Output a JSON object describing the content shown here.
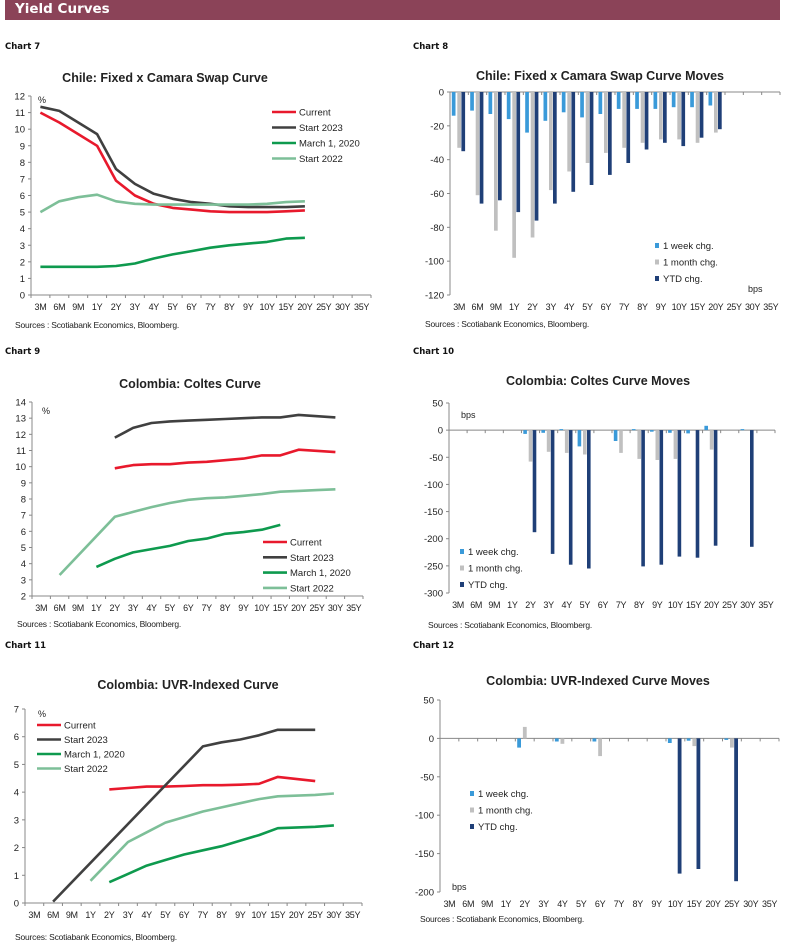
{
  "header": {
    "title": "Yield Curves",
    "color": "#8B4358"
  },
  "chart_labels": [
    "Chart 7",
    "Chart 8",
    "Chart 9",
    "Chart 10",
    "Chart 11",
    "Chart 12"
  ],
  "colors": {
    "Current": "#E8192C",
    "Start 2023": "#404040",
    "March 1, 2020": "#0E9A4E",
    "Start 2022": "#7DBF98",
    "1 week chg.": "#3A9AD9",
    "1 month chg.": "#C0C0C0",
    "YTD chg.": "#1F3F77"
  },
  "chart_data": [
    {
      "type": "line",
      "title": "Chile: Fixed x Camara Swap Curve",
      "ylabel": "%",
      "source": "Sources : Scotiabank Economics, Bloomberg.",
      "categories": [
        "3M",
        "6M",
        "9M",
        "1Y",
        "2Y",
        "3Y",
        "4Y",
        "5Y",
        "6Y",
        "7Y",
        "8Y",
        "9Y",
        "10Y",
        "15Y",
        "20Y",
        "25Y",
        "30Y",
        "35Y"
      ],
      "ylim": [
        0,
        12
      ],
      "yticks": [
        0,
        1,
        2,
        3,
        4,
        5,
        6,
        7,
        8,
        9,
        10,
        11,
        12
      ],
      "legend": "top-right",
      "series": [
        {
          "name": "Current",
          "values": [
            11.0,
            10.4,
            9.7,
            9.0,
            6.9,
            6.0,
            5.5,
            5.25,
            5.15,
            5.05,
            5.0,
            5.0,
            5.0,
            5.05,
            5.1,
            null,
            null,
            null
          ]
        },
        {
          "name": "Start 2023",
          "values": [
            11.35,
            11.1,
            10.4,
            9.7,
            7.6,
            6.7,
            6.1,
            5.8,
            5.6,
            5.5,
            5.35,
            5.3,
            5.3,
            5.3,
            5.35,
            null,
            null,
            null
          ]
        },
        {
          "name": "March 1, 2020",
          "values": [
            1.7,
            1.7,
            1.7,
            1.7,
            1.75,
            1.9,
            2.2,
            2.45,
            2.65,
            2.85,
            3.0,
            3.1,
            3.2,
            3.4,
            3.45,
            null,
            null,
            null
          ]
        },
        {
          "name": "Start 2022",
          "values": [
            5.0,
            5.65,
            5.9,
            6.05,
            5.65,
            5.5,
            5.45,
            5.45,
            5.45,
            5.45,
            5.45,
            5.45,
            5.5,
            5.6,
            5.65,
            null,
            null,
            null
          ]
        }
      ]
    },
    {
      "type": "bar",
      "title": "Chile: Fixed x Camara Swap Curve Moves",
      "ylabel": "bps",
      "source": "Sources : Scotiabank Economics, Bloomberg.",
      "categories": [
        "3M",
        "6M",
        "9M",
        "1Y",
        "2Y",
        "3Y",
        "4Y",
        "5Y",
        "6Y",
        "7Y",
        "8Y",
        "9Y",
        "10Y",
        "15Y",
        "20Y",
        "25Y",
        "30Y",
        "35Y"
      ],
      "ylim": [
        -120,
        0
      ],
      "yticks": [
        -120,
        -100,
        -80,
        -60,
        -40,
        -20,
        0
      ],
      "legend": "bottom-right",
      "series": [
        {
          "name": "1 week chg.",
          "values": [
            -14,
            -11,
            -13,
            -16,
            -24,
            -17,
            -12,
            -15,
            -13,
            -10,
            -10,
            -10,
            -9,
            -9,
            -8,
            null,
            null,
            null
          ]
        },
        {
          "name": "1 month chg.",
          "values": [
            -33,
            -61,
            -82,
            -98,
            -86,
            -58,
            -47,
            -42,
            -36,
            -33,
            -30,
            -28,
            -28,
            -30,
            -24,
            null,
            null,
            null
          ]
        },
        {
          "name": "YTD chg.",
          "values": [
            -35,
            -66,
            -64,
            -71,
            -76,
            -66,
            -59,
            -55,
            -49,
            -42,
            -34,
            -30,
            -32,
            -27,
            -22,
            null,
            null,
            null
          ]
        }
      ]
    },
    {
      "type": "line",
      "title": "Colombia: Coltes Curve",
      "ylabel": "%",
      "source": "Sources : Scotiabank Economics, Bloomberg.",
      "categories": [
        "3M",
        "6M",
        "9M",
        "1Y",
        "2Y",
        "3Y",
        "4Y",
        "5Y",
        "6Y",
        "7Y",
        "8Y",
        "9Y",
        "10Y",
        "15Y",
        "20Y",
        "25Y",
        "30Y",
        "35Y"
      ],
      "ylim": [
        2,
        14
      ],
      "yticks": [
        2,
        3,
        4,
        5,
        6,
        7,
        8,
        9,
        10,
        11,
        12,
        13,
        14
      ],
      "legend": "bottom-right",
      "series": [
        {
          "name": "Current",
          "values": [
            null,
            null,
            null,
            null,
            9.9,
            10.1,
            10.15,
            10.15,
            10.25,
            10.3,
            10.4,
            10.5,
            10.7,
            10.7,
            11.05,
            null,
            10.9,
            null
          ]
        },
        {
          "name": "Start 2023",
          "values": [
            null,
            null,
            null,
            null,
            11.8,
            12.4,
            12.7,
            12.8,
            12.85,
            12.9,
            12.95,
            13.0,
            13.05,
            13.05,
            13.2,
            null,
            13.05,
            null
          ]
        },
        {
          "name": "March 1, 2020",
          "values": [
            null,
            null,
            null,
            3.8,
            4.3,
            4.7,
            4.9,
            5.1,
            5.4,
            5.55,
            5.85,
            5.95,
            6.1,
            6.4,
            null,
            null,
            null,
            null
          ]
        },
        {
          "name": "Start 2022",
          "values": [
            null,
            3.3,
            null,
            null,
            6.9,
            7.2,
            7.5,
            7.75,
            7.95,
            8.05,
            8.1,
            8.2,
            8.3,
            8.45,
            8.5,
            8.55,
            8.6,
            null
          ]
        }
      ]
    },
    {
      "type": "bar",
      "title": "Colombia: Coltes Curve Moves",
      "ylabel": "bps",
      "source": "Sources : Scotiabank Economics, Bloomberg.",
      "categories": [
        "3M",
        "6M",
        "9M",
        "1Y",
        "2Y",
        "3Y",
        "4Y",
        "5Y",
        "6Y",
        "7Y",
        "8Y",
        "9Y",
        "10Y",
        "15Y",
        "20Y",
        "25Y",
        "30Y",
        "35Y"
      ],
      "ylim": [
        -300,
        50
      ],
      "yticks": [
        -300,
        -250,
        -200,
        -150,
        -100,
        -50,
        0,
        50
      ],
      "legend": "bottom-left",
      "series": [
        {
          "name": "1 week chg.",
          "values": [
            null,
            null,
            null,
            null,
            -7,
            -5,
            2,
            -30,
            null,
            -20,
            2,
            -3,
            -5,
            -6,
            8,
            null,
            2,
            null
          ]
        },
        {
          "name": "1 month chg.",
          "values": [
            null,
            null,
            null,
            null,
            -58,
            -40,
            -42,
            -45,
            null,
            -42,
            -53,
            -55,
            -53,
            null,
            -36,
            null,
            null,
            null
          ]
        },
        {
          "name": "YTD chg.",
          "values": [
            null,
            null,
            null,
            null,
            -188,
            -228,
            -248,
            -255,
            null,
            null,
            -251,
            -248,
            -233,
            -235,
            -213,
            null,
            -215,
            null
          ]
        }
      ]
    },
    {
      "type": "line",
      "title": "Colombia: UVR-Indexed Curve",
      "ylabel": "%",
      "source": "Sources: Scotiabank Economics, Bloomberg.",
      "categories": [
        "3M",
        "6M",
        "9M",
        "1Y",
        "2Y",
        "3Y",
        "4Y",
        "5Y",
        "6Y",
        "7Y",
        "8Y",
        "9Y",
        "10Y",
        "15Y",
        "20Y",
        "25Y",
        "30Y",
        "35Y"
      ],
      "ylim": [
        0,
        7
      ],
      "yticks": [
        0,
        1,
        2,
        3,
        4,
        5,
        6,
        7
      ],
      "legend": "top-left",
      "series": [
        {
          "name": "Current",
          "values": [
            null,
            null,
            null,
            null,
            4.1,
            4.15,
            4.2,
            4.2,
            4.22,
            4.25,
            4.25,
            4.27,
            4.3,
            4.55,
            null,
            4.4,
            null,
            null
          ]
        },
        {
          "name": "Start 2023",
          "values": [
            null,
            0.05,
            null,
            null,
            null,
            null,
            null,
            null,
            null,
            5.65,
            5.8,
            5.9,
            6.05,
            6.25,
            null,
            6.25,
            null,
            null
          ]
        },
        {
          "name": "March 1, 2020",
          "values": [
            null,
            null,
            null,
            null,
            0.75,
            1.05,
            1.35,
            1.55,
            1.75,
            1.9,
            2.05,
            2.25,
            2.45,
            2.7,
            null,
            2.75,
            2.8,
            null
          ]
        },
        {
          "name": "Start 2022",
          "values": [
            null,
            null,
            null,
            0.8,
            null,
            2.2,
            2.55,
            2.9,
            3.1,
            3.3,
            3.45,
            3.6,
            3.75,
            3.85,
            null,
            3.9,
            3.95,
            null
          ]
        }
      ]
    },
    {
      "type": "bar",
      "title": "Colombia: UVR-Indexed Curve Moves",
      "ylabel": "bps",
      "source": "Sources : Scotiabank Economics, Bloomberg.",
      "categories": [
        "3M",
        "6M",
        "9M",
        "1Y",
        "2Y",
        "3Y",
        "4Y",
        "5Y",
        "6Y",
        "7Y",
        "8Y",
        "9Y",
        "10Y",
        "15Y",
        "20Y",
        "25Y",
        "30Y",
        "35Y"
      ],
      "ylim": [
        -200,
        50
      ],
      "yticks": [
        -200,
        -150,
        -100,
        -50,
        0,
        50
      ],
      "legend": "center-left",
      "series": [
        {
          "name": "1 week chg.",
          "values": [
            null,
            null,
            null,
            null,
            -12,
            null,
            -4,
            null,
            -4,
            null,
            null,
            null,
            -6,
            -3,
            null,
            -2,
            null,
            null
          ]
        },
        {
          "name": "1 month chg.",
          "values": [
            null,
            null,
            null,
            null,
            15,
            null,
            -7,
            null,
            -23,
            null,
            null,
            null,
            null,
            -10,
            null,
            -12,
            null,
            null
          ]
        },
        {
          "name": "YTD chg.",
          "values": [
            null,
            null,
            null,
            null,
            null,
            null,
            null,
            null,
            null,
            null,
            null,
            null,
            -176,
            -170,
            null,
            -186,
            null,
            null
          ]
        }
      ]
    }
  ]
}
